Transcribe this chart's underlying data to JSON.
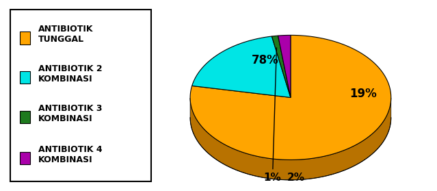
{
  "labels": [
    "ANTIBIOTIK\nTUNGGAL",
    "ANTIBIOTIK 2\nKOMBINASI",
    "ANTIBIOTIK 3\nKOMBINASI",
    "ANTIBIOTIK 4\nKOMBINASI"
  ],
  "values": [
    78,
    19,
    1,
    2
  ],
  "colors": [
    "#FFA500",
    "#00E5E5",
    "#1E7A1E",
    "#AA00AA"
  ],
  "dark_colors": [
    "#B87200",
    "#009999",
    "#0D4A0D",
    "#660066"
  ],
  "background_color": "#ffffff",
  "pct_labels": [
    "78%",
    "19%",
    "1%",
    "2%"
  ],
  "pct_fontsize": 11,
  "legend_fontsize": 9
}
